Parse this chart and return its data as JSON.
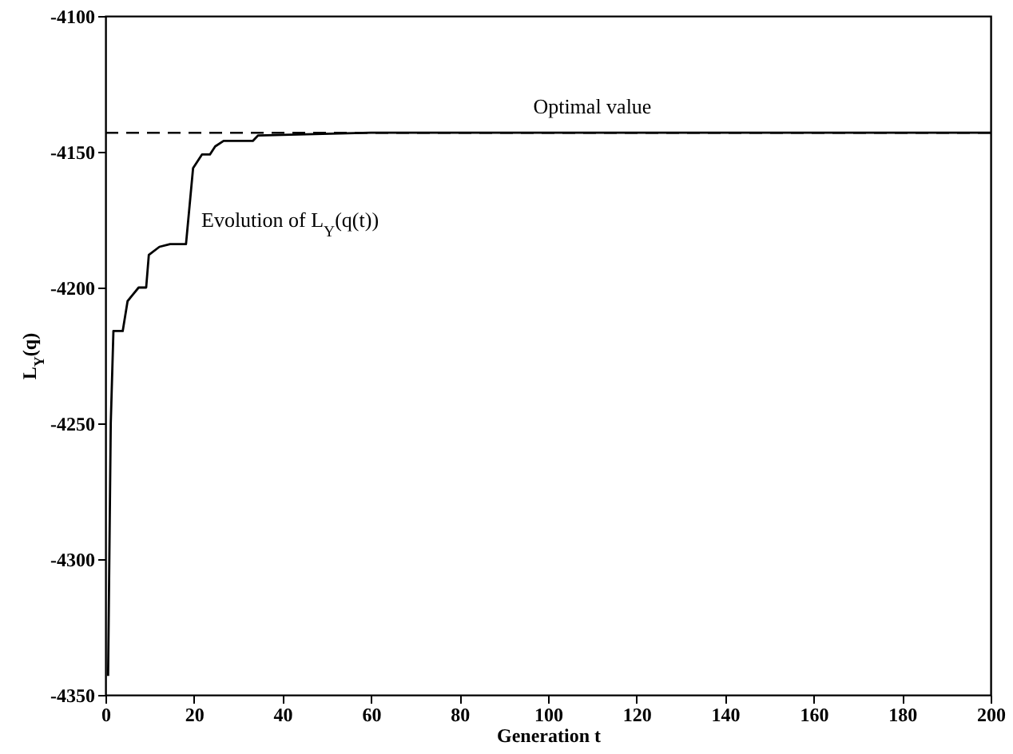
{
  "chart_data": {
    "type": "line",
    "xlabel": "Generation t",
    "ylabel": "L$_{Y}$(q)",
    "xlim": [
      0,
      200
    ],
    "xticks": [
      0,
      20,
      40,
      60,
      80,
      100,
      120,
      140,
      160,
      180,
      200
    ],
    "ylim": [
      -4350,
      -4100
    ],
    "yticks": [
      -4350,
      -4300,
      -4250,
      -4200,
      -4150,
      -4100
    ],
    "grid": false,
    "line_style": "solid",
    "marker": "none",
    "series": [
      {
        "color": "#000000",
        "x": [
          0.6,
          1.2,
          1.8,
          3.9,
          5,
          6,
          7.5,
          9.2,
          9.8,
          12.2,
          14.6,
          18.2,
          19.8,
          21.8,
          23.6,
          24.8,
          26.7,
          33.3,
          34.5,
          60,
          200
        ],
        "values": [
          -4343,
          -4250,
          -4216,
          -4216,
          -4205,
          -4203,
          -4200,
          -4200,
          -4188,
          -4185,
          -4184,
          -4184,
          -4156,
          -4151,
          -4151,
          -4148,
          -4146,
          -4146,
          -4144,
          -4143,
          -4143
        ]
      }
    ],
    "ref_lines": [
      {
        "axis": "y",
        "value": -4143,
        "label": "Optimal value",
        "line_style": "dashed",
        "color": "#000000"
      }
    ],
    "annotations": [
      "Evolution of L$_{Y}$(q(t))"
    ]
  }
}
